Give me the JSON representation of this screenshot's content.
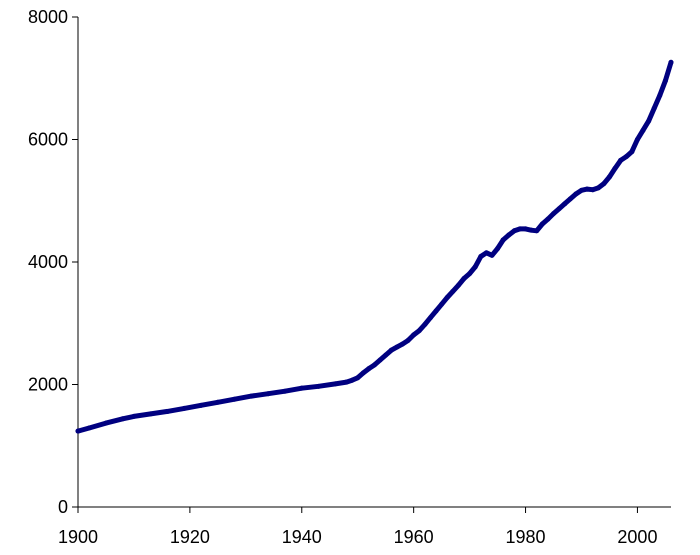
{
  "chart_data": {
    "type": "line",
    "title": "",
    "xlabel": "",
    "ylabel": "",
    "xlim": [
      1900,
      2006
    ],
    "ylim": [
      0,
      8000
    ],
    "grid": false,
    "legend": "none",
    "x_ticks": [
      "1900",
      "1920",
      "1940",
      "1960",
      "1980",
      "2000"
    ],
    "y_ticks": [
      "0",
      "2000",
      "4000",
      "6000",
      "8000"
    ],
    "line_color": "#000080",
    "series": [
      {
        "x": [
          1900,
          1902,
          1905,
          1908,
          1910,
          1913,
          1916,
          1919,
          1922,
          1925,
          1928,
          1931,
          1934,
          1937,
          1940,
          1943,
          1946,
          1948,
          1949,
          1950,
          1951,
          1952,
          1953,
          1954,
          1955,
          1956,
          1957,
          1958,
          1959,
          1960,
          1961,
          1962,
          1963,
          1964,
          1965,
          1966,
          1967,
          1968,
          1969,
          1970,
          1971,
          1972,
          1973,
          1974,
          1975,
          1976,
          1977,
          1978,
          1979,
          1980,
          1981,
          1982,
          1983,
          1984,
          1985,
          1986,
          1987,
          1988,
          1989,
          1990,
          1991,
          1992,
          1993,
          1994,
          1995,
          1996,
          1997,
          1998,
          1999,
          2000,
          2001,
          2002,
          2003,
          2004,
          2005,
          2006
        ],
        "values": [
          1240,
          1290,
          1370,
          1440,
          1480,
          1520,
          1560,
          1610,
          1660,
          1710,
          1760,
          1810,
          1850,
          1890,
          1940,
          1970,
          2010,
          2040,
          2070,
          2110,
          2190,
          2260,
          2320,
          2400,
          2480,
          2560,
          2610,
          2660,
          2720,
          2810,
          2880,
          2980,
          3090,
          3200,
          3310,
          3420,
          3520,
          3620,
          3730,
          3810,
          3920,
          4090,
          4150,
          4110,
          4220,
          4360,
          4440,
          4510,
          4540,
          4540,
          4520,
          4510,
          4620,
          4700,
          4790,
          4870,
          4950,
          5030,
          5110,
          5170,
          5190,
          5180,
          5210,
          5280,
          5390,
          5530,
          5660,
          5720,
          5800,
          6000,
          6150,
          6300,
          6510,
          6720,
          6960,
          7260
        ]
      }
    ]
  }
}
